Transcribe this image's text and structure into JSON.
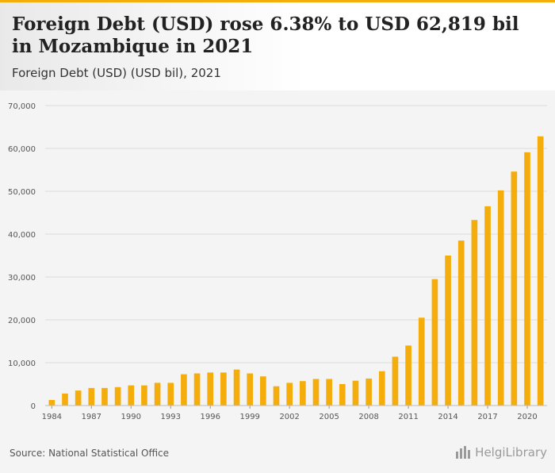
{
  "header": {
    "title": "Foreign Debt (USD) rose 6.38% to USD 62,819 bil in Mozambique in 2021",
    "subtitle": "Foreign Debt (USD) (USD bil), 2021"
  },
  "footer": {
    "source": "Source: National Statistical Office",
    "logo_text": "HelgiLibrary"
  },
  "colors": {
    "bar": "#f5ad0c",
    "grid": "#dcdcdc",
    "axis_text": "#555555",
    "accent": "#f5ad0c"
  },
  "chart_data": {
    "type": "bar",
    "title": "Foreign Debt (USD) rose 6.38% to USD 62,819 bil in Mozambique in 2021",
    "subtitle": "Foreign Debt (USD) (USD bil), 2021",
    "x": [
      1984,
      1985,
      1986,
      1987,
      1988,
      1989,
      1990,
      1991,
      1992,
      1993,
      1994,
      1995,
      1996,
      1997,
      1998,
      1999,
      2000,
      2001,
      2002,
      2003,
      2004,
      2005,
      2006,
      2007,
      2008,
      2009,
      2010,
      2011,
      2012,
      2013,
      2014,
      2015,
      2016,
      2017,
      2018,
      2019,
      2020,
      2021
    ],
    "values": [
      1300,
      2800,
      3500,
      4100,
      4100,
      4300,
      4700,
      4700,
      5300,
      5300,
      7300,
      7500,
      7700,
      7700,
      8400,
      7500,
      6800,
      4500,
      5300,
      5700,
      6200,
      6200,
      5000,
      5800,
      6300,
      8000,
      11400,
      14000,
      20500,
      29500,
      35000,
      38500,
      43300,
      46500,
      50200,
      54600,
      59100,
      62819
    ],
    "x_tick_labels": [
      "1984",
      "1987",
      "1990",
      "1993",
      "1996",
      "1999",
      "2002",
      "2005",
      "2008",
      "2011",
      "2014",
      "2017",
      "2020"
    ],
    "y_tick_values": [
      0,
      10000,
      20000,
      30000,
      40000,
      50000,
      60000,
      70000
    ],
    "y_tick_labels": [
      "0",
      "10,000",
      "20,000",
      "30,000",
      "40,000",
      "50,000",
      "60,000",
      "70,000"
    ],
    "ylim": [
      0,
      70000
    ],
    "xlabel": "",
    "ylabel": "",
    "grid": true,
    "legend": "none"
  }
}
